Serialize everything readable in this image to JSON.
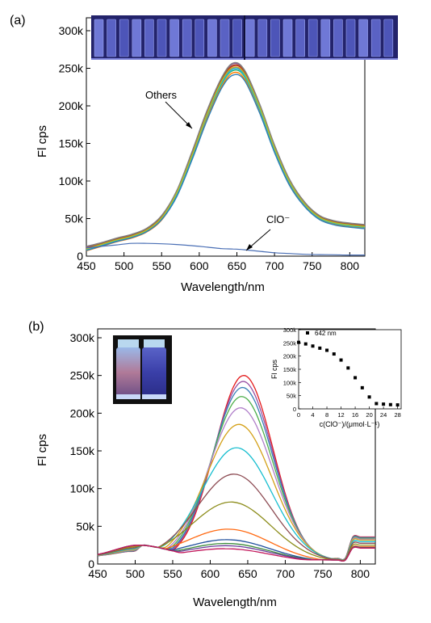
{
  "chart_data": [
    {
      "panel": "(a)",
      "type": "line",
      "xlabel": "Wavelength/nm",
      "ylabel": "Fl cps",
      "xlim": [
        450,
        820
      ],
      "ylim": [
        0,
        300000
      ],
      "x_ticks": [
        450,
        500,
        550,
        600,
        650,
        700,
        750,
        800
      ],
      "y_ticks": [
        0,
        50000,
        100000,
        150000,
        200000,
        250000,
        300000
      ],
      "y_tick_labels": [
        "0",
        "50k",
        "100k",
        "150k",
        "200k",
        "250k",
        "300k"
      ],
      "annotations": [
        "Others",
        "ClO⁻"
      ],
      "inset": "photo: row of vials under UV light",
      "series_shared_x": [
        450,
        470,
        490,
        510,
        530,
        550,
        570,
        590,
        610,
        630,
        645,
        660,
        680,
        700,
        720,
        740,
        760,
        780,
        800,
        820
      ],
      "series": [
        {
          "name": "Others",
          "color": "#e41a1c",
          "values": [
            10000,
            16000,
            22000,
            27000,
            35000,
            52000,
            85000,
            135000,
            190000,
            235000,
            253000,
            245000,
            200000,
            145000,
            100000,
            70000,
            52000,
            45000,
            42000,
            40000
          ]
        },
        {
          "name": "Others",
          "color": "#377eb8",
          "values": [
            9000,
            15000,
            21000,
            26000,
            34000,
            50000,
            83000,
            132000,
            187000,
            232000,
            250000,
            242000,
            198000,
            143000,
            98000,
            69000,
            51000,
            44000,
            41000,
            39000
          ]
        },
        {
          "name": "Others",
          "color": "#4daf4a",
          "values": [
            8000,
            14000,
            20000,
            25000,
            33000,
            49000,
            81000,
            130000,
            185000,
            229000,
            247000,
            239000,
            195000,
            141000,
            97000,
            68000,
            50000,
            43000,
            40000,
            38000
          ]
        },
        {
          "name": "Others",
          "color": "#984ea3",
          "values": [
            12000,
            17000,
            23000,
            28000,
            36000,
            53000,
            86000,
            137000,
            192000,
            237000,
            256000,
            247000,
            202000,
            147000,
            101000,
            71000,
            53000,
            46000,
            43000,
            41000
          ]
        },
        {
          "name": "Others",
          "color": "#ff7f00",
          "values": [
            7000,
            13000,
            19000,
            24000,
            32000,
            48000,
            80000,
            128000,
            182000,
            226000,
            244000,
            236000,
            193000,
            139000,
            95000,
            67000,
            49000,
            42000,
            39000,
            37000
          ]
        },
        {
          "name": "Others",
          "color": "#a65628",
          "values": [
            11000,
            16500,
            22500,
            27500,
            35500,
            52500,
            85500,
            136000,
            191000,
            236000,
            254000,
            246000,
            201000,
            146000,
            100500,
            70500,
            52500,
            45500,
            42500,
            40500
          ]
        },
        {
          "name": "Others",
          "color": "#808080",
          "values": [
            13000,
            18000,
            24000,
            29000,
            37000,
            54000,
            87000,
            138000,
            193000,
            238000,
            257000,
            248000,
            203000,
            148000,
            102000,
            72000,
            54000,
            47000,
            44000,
            42000
          ]
        },
        {
          "name": "Others",
          "color": "#17becf",
          "values": [
            8500,
            14500,
            20500,
            25500,
            33500,
            49500,
            82000,
            131000,
            186000,
            230000,
            248000,
            240000,
            196000,
            142000,
            97500,
            68500,
            50500,
            43500,
            40500,
            38500
          ]
        },
        {
          "name": "Others",
          "color": "#bcbd22",
          "values": [
            9500,
            15500,
            21500,
            26500,
            34500,
            51000,
            84000,
            133000,
            188000,
            233000,
            251000,
            243000,
            199000,
            144000,
            99000,
            69500,
            51500,
            44500,
            41500,
            39500
          ]
        },
        {
          "name": "Others",
          "color": "#2c7fb8",
          "values": [
            7500,
            13500,
            19500,
            24500,
            32500,
            48500,
            79000,
            127000,
            180000,
            224000,
            241000,
            234000,
            191000,
            138000,
            94000,
            66000,
            48500,
            41500,
            38500,
            36500
          ]
        },
        {
          "name": "ClO⁻",
          "color": "#4a6fb5",
          "values": [
            11000,
            13000,
            15000,
            17000,
            17000,
            16500,
            15500,
            14000,
            12000,
            10000,
            9500,
            8500,
            6500,
            4500,
            3500,
            2500,
            2000,
            1800,
            1500,
            1500
          ]
        }
      ]
    },
    {
      "panel": "(b)",
      "type": "line",
      "xlabel": "Wavelength/nm",
      "ylabel": "Fl cps",
      "xlim": [
        450,
        820
      ],
      "ylim": [
        0,
        300000
      ],
      "x_ticks": [
        450,
        500,
        550,
        600,
        650,
        700,
        750,
        800
      ],
      "y_ticks": [
        0,
        50000,
        100000,
        150000,
        200000,
        250000,
        300000
      ],
      "y_tick_labels": [
        "0",
        "50k",
        "100k",
        "150k",
        "200k",
        "250k",
        "300k"
      ],
      "photo_inset": "two vials under UV light",
      "series_peaks": [
        {
          "color": "#e41a1c",
          "peak": 248000
        },
        {
          "color": "#984ea3",
          "peak": 240000
        },
        {
          "color": "#377eb8",
          "peak": 232000
        },
        {
          "color": "#4daf4a",
          "peak": 220000
        },
        {
          "color": "#b07fc9",
          "peak": 205000
        },
        {
          "color": "#d4a017",
          "peak": 183000
        },
        {
          "color": "#17becf",
          "peak": 152000
        },
        {
          "color": "#8c4a52",
          "peak": 117000
        },
        {
          "color": "#8c8c1a",
          "peak": 80000
        },
        {
          "color": "#ff6a13",
          "peak": 44000
        },
        {
          "color": "#1f4e9c",
          "peak": 30000
        },
        {
          "color": "#3c8c3c",
          "peak": 25000
        },
        {
          "color": "#6a3d9a",
          "peak": 22000
        },
        {
          "color": "#c2185b",
          "peak": 18000
        }
      ],
      "inset_chart": {
        "type": "scatter",
        "legend": "642 nm",
        "xlabel": "c(ClO⁻)/(μmol·L⁻¹)",
        "ylabel": "Fl cps",
        "xlim": [
          0,
          29
        ],
        "ylim": [
          0,
          300000
        ],
        "x_ticks": [
          0,
          4,
          8,
          12,
          16,
          20,
          24,
          28
        ],
        "y_ticks": [
          0,
          50000,
          100000,
          150000,
          200000,
          250000,
          300000
        ],
        "y_tick_labels": [
          "0",
          "50k",
          "100k",
          "150k",
          "200k",
          "250k",
          "300k"
        ],
        "x": [
          0,
          2,
          4,
          6,
          8,
          10,
          12,
          14,
          16,
          18,
          20,
          22,
          24,
          26,
          28
        ],
        "y": [
          252000,
          246000,
          238000,
          230000,
          222000,
          208000,
          185000,
          155000,
          118000,
          80000,
          45000,
          20000,
          18000,
          16000,
          15000
        ]
      }
    }
  ]
}
